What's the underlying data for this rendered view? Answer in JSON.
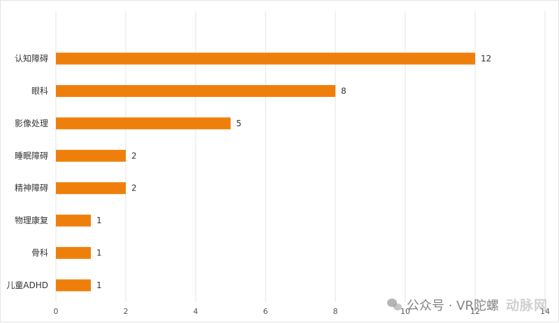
{
  "chart_data": {
    "type": "bar",
    "orientation": "horizontal",
    "categories": [
      "认知障碍",
      "眼科",
      "影像处理",
      "睡眠障碍",
      "精神障碍",
      "物理康复",
      "骨科",
      "儿童ADHD"
    ],
    "values": [
      12,
      8,
      5,
      2,
      2,
      1,
      1,
      1
    ],
    "xlim": [
      0,
      14
    ],
    "xticks": [
      0,
      2,
      4,
      6,
      8,
      10,
      12,
      14
    ],
    "grid": true,
    "legend": "none",
    "bar_color": "#ef7f0b",
    "title": "",
    "xlabel": "",
    "ylabel": ""
  },
  "watermark": {
    "text": "公众号 · VR陀螺",
    "logo_text": "动脉网"
  }
}
